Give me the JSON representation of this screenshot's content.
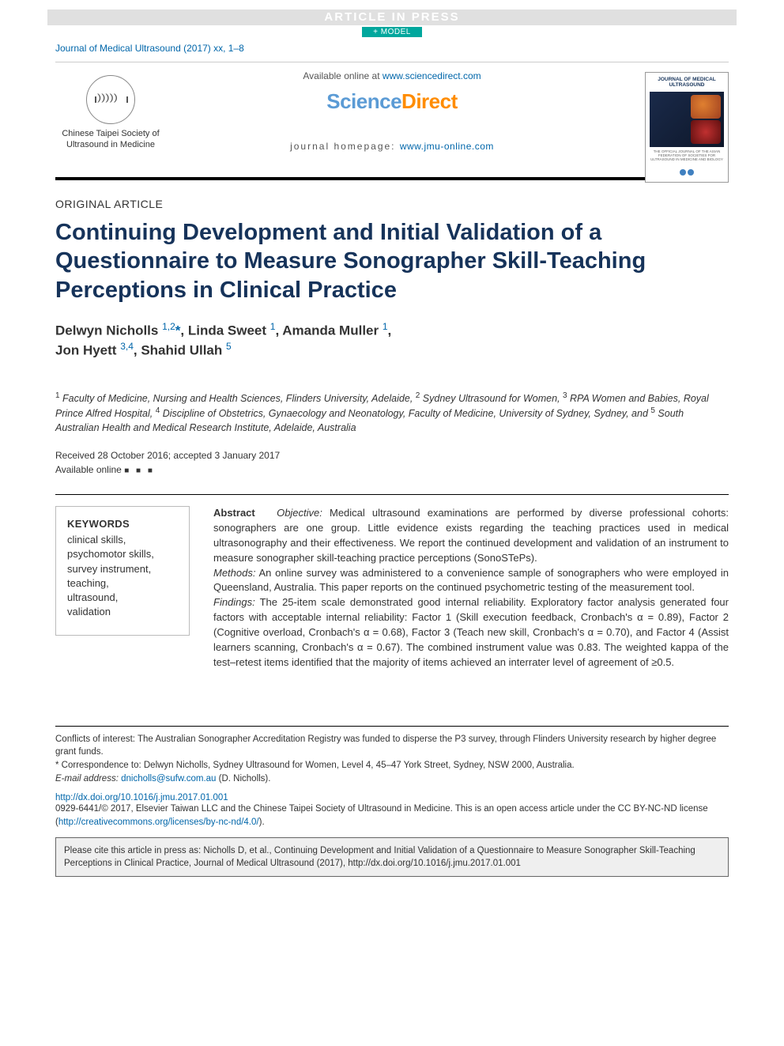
{
  "banner": {
    "press_text": "ARTICLE IN PRESS",
    "model_text": "+ MODEL"
  },
  "journal_ref": {
    "name": "Journal of Medical Ultrasound",
    "year": "(2017)",
    "vol": "xx",
    "pages": "1–8"
  },
  "header": {
    "available_prefix": "Available online at ",
    "available_url": "www.sciencedirect.com",
    "brand_part1": "Science",
    "brand_part2": "Direct",
    "homepage_prefix": "journal homepage: ",
    "homepage_url": "www.jmu-online.com",
    "society_caption": "Chinese Taipei Society of Ultrasound in Medicine",
    "cover_title": "JOURNAL OF MEDICAL ULTRASOUND",
    "cover_subtitle": "THE OFFICIAL JOURNAL OF THE ASIAN FEDERATION OF SOCIETIES FOR ULTRASOUND IN MEDICINE AND BIOLOGY"
  },
  "article_type": "ORIGINAL ARTICLE",
  "title": "Continuing Development and Initial Validation of a Questionnaire to Measure Sonographer Skill-Teaching Perceptions in Clinical Practice",
  "authors_html": "Delwyn Nicholls <sup>1,2</sup><span class='star'>*</span>, Linda Sweet <sup>1</sup>, Amanda Muller <sup>1</sup>,<br>Jon Hyett <sup>3,4</sup>, Shahid Ullah <sup>5</sup>",
  "affiliations_html": "<sup>1</sup> Faculty of Medicine, Nursing and Health Sciences, Flinders University, Adelaide, <sup>2</sup> Sydney Ultrasound for Women, <sup>3</sup> RPA Women and Babies, Royal Prince Alfred Hospital, <sup>4</sup> Discipline of Obstetrics, Gynaecology and Neonatology, Faculty of Medicine, University of Sydney, Sydney, and <sup>5</sup> South Australian Health and Medical Research Institute, Adelaide, Australia",
  "dates": {
    "received_accepted": "Received 28 October 2016; accepted 3 January 2017",
    "available_label": "Available online"
  },
  "keywords": {
    "heading": "KEYWORDS",
    "items": [
      "clinical skills,",
      "psychomotor skills,",
      "survey instrument,",
      "teaching,",
      "ultrasound,",
      "validation"
    ]
  },
  "abstract": {
    "lead": "Abstract",
    "objective_label": "Objective:",
    "objective_text": " Medical ultrasound examinations are performed by diverse professional cohorts: sonographers are one group. Little evidence exists regarding the teaching practices used in medical ultrasonography and their effectiveness. We report the continued development and validation of an instrument to measure sonographer skill-teaching practice perceptions (SonoSTePs).",
    "methods_label": "Methods:",
    "methods_text": " An online survey was administered to a convenience sample of sonographers who were employed in Queensland, Australia. This paper reports on the continued psychometric testing of the measurement tool.",
    "findings_label": "Findings:",
    "findings_text": " The 25-item scale demonstrated good internal reliability. Exploratory factor analysis generated four factors with acceptable internal reliability: Factor 1 (Skill execution feedback, Cronbach's α = 0.89), Factor 2 (Cognitive overload, Cronbach's α = 0.68), Factor 3 (Teach new skill, Cronbach's α = 0.70), and Factor 4 (Assist learners scanning, Cronbach's α = 0.67). The combined instrument value was 0.83. The weighted kappa of the test–retest items identified that the majority of items achieved an interrater level of agreement of ≥0.5."
  },
  "footnotes": {
    "conflicts": "Conflicts of interest: The Australian Sonographer Accreditation Registry was funded to disperse the P3 survey, through Flinders University research by higher degree grant funds.",
    "correspondence": "* Correspondence to: Delwyn Nicholls, Sydney Ultrasound for Women, Level 4, 45–47 York Street, Sydney, NSW 2000, Australia.",
    "email_label": "E-mail address:",
    "email": "dnicholls@sufw.com.au",
    "email_author": "(D. Nicholls)."
  },
  "doi": "http://dx.doi.org/10.1016/j.jmu.2017.01.001",
  "copyright": {
    "issn": "0929-6441/© 2017, Elsevier Taiwan LLC and the Chinese Taipei Society of Ultrasound in Medicine. This is an open access article under the CC BY-NC-ND license (",
    "license_url": "http://creativecommons.org/licenses/by-nc-nd/4.0/",
    "close": ")."
  },
  "cite_box": "Please cite this article in press as: Nicholls D, et al., Continuing Development and Initial Validation of a Questionnaire to Measure Sonographer Skill-Teaching Perceptions in Clinical Practice, Journal of Medical Ultrasound (2017), http://dx.doi.org/10.1016/j.jmu.2017.01.001",
  "colors": {
    "brand_blue": "#5b9bd5",
    "brand_orange": "#ff8c00",
    "link": "#0066aa",
    "title_navy": "#16335a",
    "teal_badge": "#00a79d",
    "banner_bg": "#e0e0e0",
    "citebox_bg": "#efefef"
  }
}
